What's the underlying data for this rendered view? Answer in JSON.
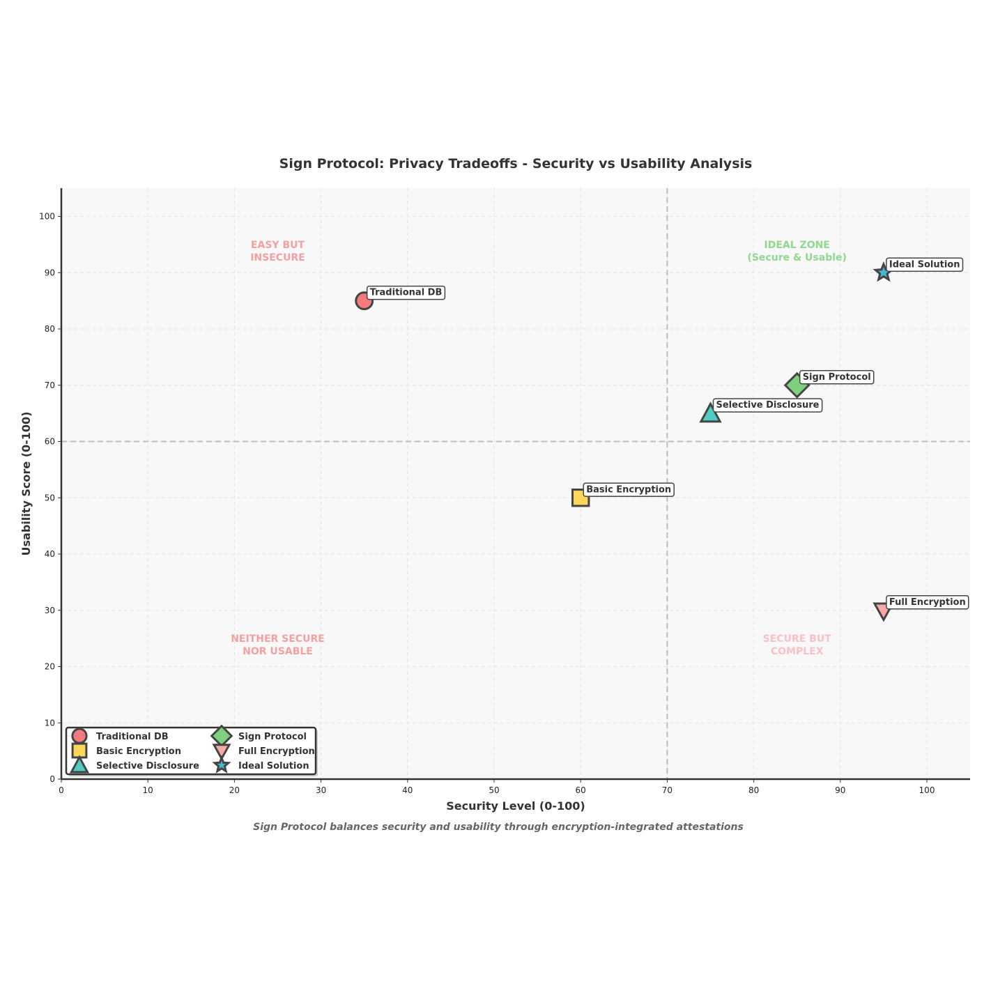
{
  "chart_data": {
    "type": "scatter",
    "title": "Sign Protocol: Privacy Tradeoffs - Security vs Usability Analysis",
    "xlabel": "Security Level (0-100)",
    "ylabel": "Usability Score (0-100)",
    "caption": "Sign Protocol balances security and usability through encryption-integrated attestations",
    "xlim": [
      0,
      105
    ],
    "ylim": [
      0,
      105
    ],
    "xticks": [
      0,
      10,
      20,
      30,
      40,
      50,
      60,
      70,
      80,
      90,
      100
    ],
    "yticks": [
      0,
      10,
      20,
      30,
      40,
      50,
      60,
      70,
      80,
      90,
      100
    ],
    "grid": true,
    "thresholds": {
      "x": 70,
      "y": 60
    },
    "legend_position": "lower-left",
    "series": [
      {
        "name": "Traditional DB",
        "x": 35,
        "y": 85,
        "marker": "circle",
        "color": "#F47B7B"
      },
      {
        "name": "Basic Encryption",
        "x": 60,
        "y": 50,
        "marker": "square",
        "color": "#FDD75C"
      },
      {
        "name": "Selective Disclosure",
        "x": 75,
        "y": 65,
        "marker": "triangle-up",
        "color": "#4ECDC4"
      },
      {
        "name": "Sign Protocol",
        "x": 85,
        "y": 70,
        "marker": "diamond",
        "color": "#7ED07E"
      },
      {
        "name": "Full Encryption",
        "x": 95,
        "y": 30,
        "marker": "triangle-down",
        "color": "#F9A8A8"
      },
      {
        "name": "Ideal Solution",
        "x": 95,
        "y": 90,
        "marker": "star",
        "color": "#45B7D1"
      }
    ],
    "zones": [
      {
        "lines": [
          "EASY BUT",
          "INSECURE"
        ],
        "x": 25,
        "y": 95,
        "color": "#F4A0A0"
      },
      {
        "lines": [
          "IDEAL ZONE",
          "(Secure & Usable)"
        ],
        "x": 85,
        "y": 95,
        "color": "#90D890"
      },
      {
        "lines": [
          "NEITHER SECURE",
          "NOR USABLE"
        ],
        "x": 25,
        "y": 25,
        "color": "#F4A0A0"
      },
      {
        "lines": [
          "SECURE BUT",
          "COMPLEX"
        ],
        "x": 85,
        "y": 25,
        "color": "#F9C0C8"
      }
    ]
  }
}
